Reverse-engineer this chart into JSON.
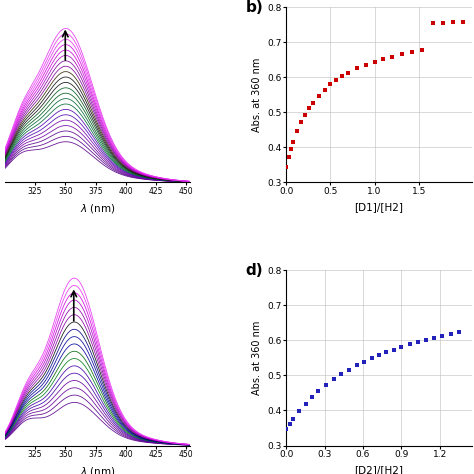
{
  "panel_b_label": "b)",
  "panel_d_label": "d)",
  "ylabel_b": "Abs. at 360 nm",
  "ylabel_d": "Abs. at 360 nm",
  "xlabel_b": "[D1]/[H2]",
  "xlabel_d": "[D2]/[H2]",
  "ylim": [
    0.3,
    0.8
  ],
  "yticks": [
    0.3,
    0.4,
    0.5,
    0.6,
    0.7,
    0.8
  ],
  "xlim_b_max": 2.1,
  "xticks_b": [
    0.0,
    0.5,
    1.0,
    1.5
  ],
  "xlim_d_max": 1.45,
  "xticks_d": [
    0.0,
    0.3,
    0.6,
    0.9,
    1.2
  ],
  "red_color": "#cc0000",
  "blue_color": "#2222bb",
  "grid_color": "#bbbbbb",
  "bg_color": "#ffffff",
  "spectra_xlim": [
    300,
    453
  ],
  "spectra_xticks": [
    325,
    350,
    375,
    400,
    425,
    450
  ]
}
